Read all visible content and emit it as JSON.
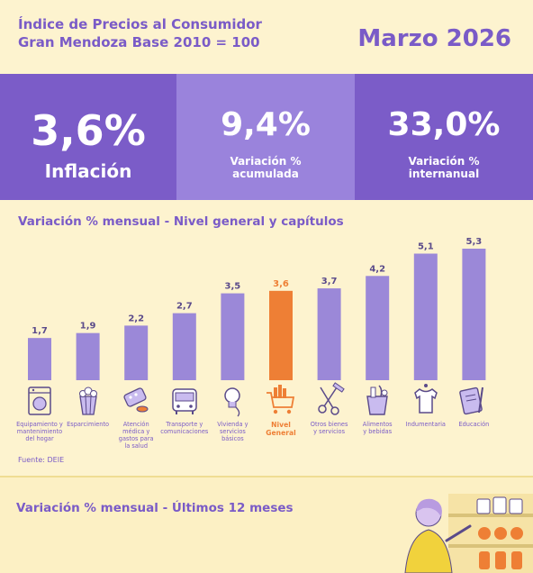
{
  "header": {
    "title_line1": "Índice de Precios al Consumidor",
    "title_line2": "Gran Mendoza Base 2010 = 100",
    "date": "Marzo 2026"
  },
  "kpis": [
    {
      "value": "3,6%",
      "label": "Inflación"
    },
    {
      "value": "9,4%",
      "label_line1": "Variación %",
      "label_line2": "acumulada"
    },
    {
      "value": "33,0%",
      "label_line1": "Variación %",
      "label_line2": "internanual"
    }
  ],
  "chart_section": {
    "title": "Variación % mensual - Nivel general y capítulos",
    "source": "Fuente: DEIE"
  },
  "chart_data": {
    "type": "bar",
    "categories": [
      "Equipamiento y mantenimiento del hogar",
      "Esparcimiento",
      "Atención médica y gastos para la salud",
      "Transporte y comunicaciones",
      "Vivienda y servicios básicos",
      "Nivel General",
      "Otros bienes y servicios",
      "Alimentos y bebidas",
      "Indumentaria",
      "Educación"
    ],
    "values": [
      1.7,
      1.9,
      2.2,
      2.7,
      3.5,
      3.6,
      3.7,
      4.2,
      5.1,
      5.3
    ],
    "value_labels": [
      "1,7",
      "1,9",
      "2,2",
      "2,7",
      "3,5",
      "3,6",
      "3,7",
      "4,2",
      "5,1",
      "5,3"
    ],
    "highlight_index": 5,
    "title": "Variación % mensual - Nivel general y capítulos",
    "xlabel": "",
    "ylabel": "",
    "ylim": [
      0,
      5.3
    ],
    "grid": false,
    "colors": {
      "bar": "#9b88d8",
      "highlight": "#ee7f35",
      "label": "#5a4a8a"
    }
  },
  "categories_display": [
    {
      "lines": [
        "Equipamiento y",
        "mantenimiento",
        "del hogar"
      ],
      "icon": "washing-machine-icon"
    },
    {
      "lines": [
        "Esparcimiento"
      ],
      "icon": "popcorn-icon"
    },
    {
      "lines": [
        "Atención",
        "médica y",
        "gastos para",
        "la salud"
      ],
      "icon": "pills-icon"
    },
    {
      "lines": [
        "Transporte y",
        "comunicaciones"
      ],
      "icon": "bus-icon"
    },
    {
      "lines": [
        "Vivienda y",
        "servicios",
        "básicos"
      ],
      "icon": "lightbulb-icon"
    },
    {
      "lines": [
        "Nivel",
        "General"
      ],
      "icon": "shopping-cart-icon"
    },
    {
      "lines": [
        "Otros bienes",
        "y servicios"
      ],
      "icon": "scissors-comb-icon"
    },
    {
      "lines": [
        "Alimentos",
        "y bebidas"
      ],
      "icon": "grocery-bag-icon"
    },
    {
      "lines": [
        "Indumentaria"
      ],
      "icon": "tshirt-icon"
    },
    {
      "lines": [
        "Educación"
      ],
      "icon": "notebook-pen-icon"
    }
  ],
  "bottom": {
    "title": "Variación % mensual - Últimos 12 meses"
  },
  "colors": {
    "background": "#fdf3cf",
    "purple_dark": "#7b5cc8",
    "purple_light": "#9a83dc",
    "accent_orange": "#ee7f35"
  }
}
